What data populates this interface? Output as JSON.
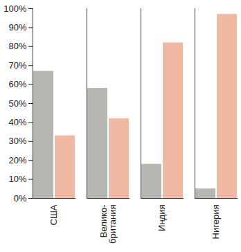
{
  "chart_data": {
    "type": "bar",
    "categories": [
      "США",
      "Велико-\nбритания",
      "Индия",
      "Нигерия"
    ],
    "series": [
      {
        "color": "#b5b7b1",
        "values": [
          67,
          58,
          18,
          5
        ]
      },
      {
        "color": "#f1b8a2",
        "values": [
          33,
          42,
          82,
          97
        ]
      }
    ],
    "ylim": [
      0,
      100
    ],
    "yticks": [
      {
        "value": 0,
        "label": "0%"
      },
      {
        "value": 10,
        "label": "10%"
      },
      {
        "value": 20,
        "label": "20%"
      },
      {
        "value": 30,
        "label": "30%"
      },
      {
        "value": 40,
        "label": "40%"
      },
      {
        "value": 50,
        "label": "50%"
      },
      {
        "value": 60,
        "label": "60%"
      },
      {
        "value": 70,
        "label": "70%"
      },
      {
        "value": 80,
        "label": "80%"
      },
      {
        "value": 90,
        "label": "90%"
      },
      {
        "value": 100,
        "label": "100%"
      }
    ],
    "grid": false
  }
}
